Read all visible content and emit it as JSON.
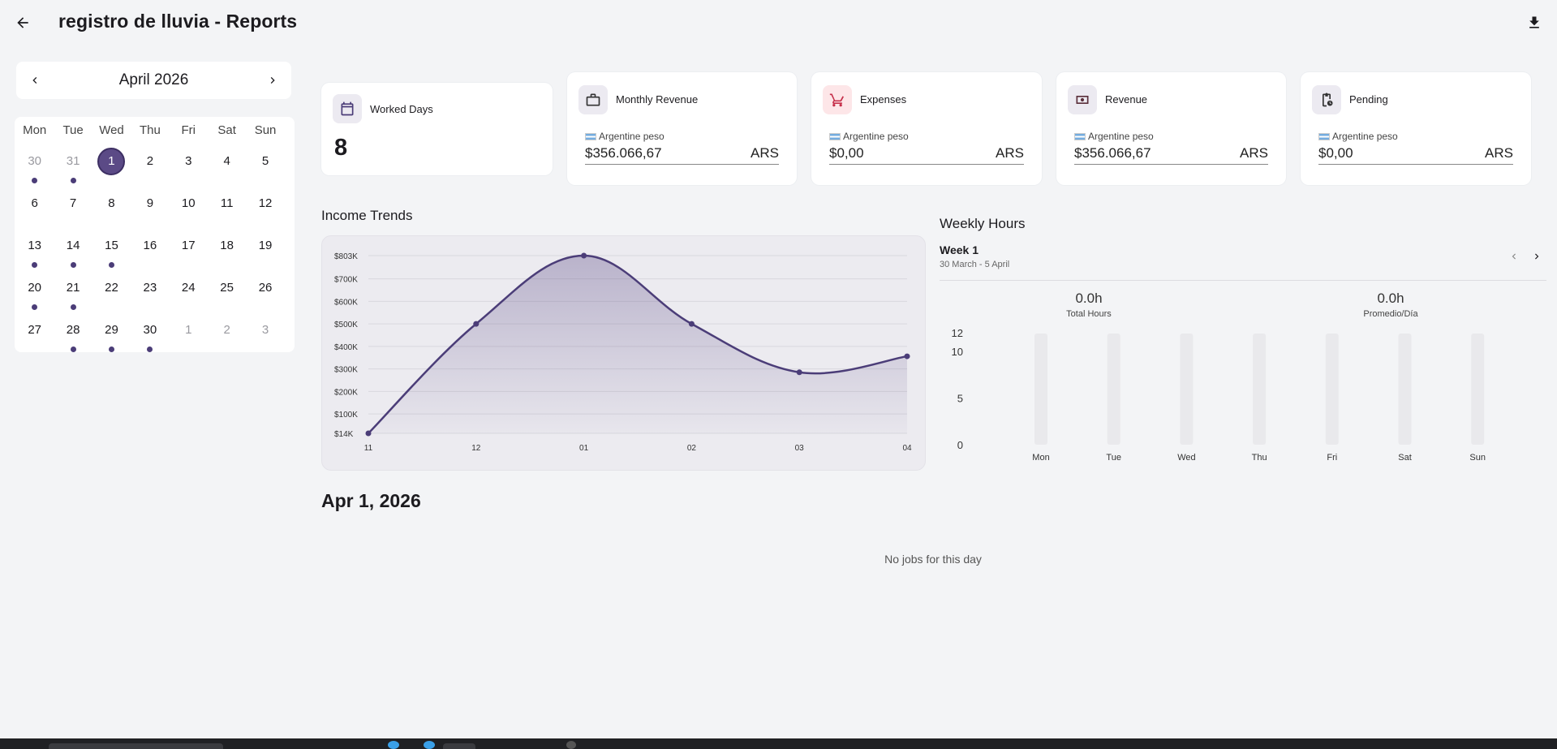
{
  "header": {
    "title": "registro de lluvia - Reports",
    "back_icon": "arrow-left-icon",
    "download_icon": "download-icon"
  },
  "calendar": {
    "month_label": "April 2026",
    "weekdays": [
      "Mon",
      "Tue",
      "Wed",
      "Thu",
      "Fri",
      "Sat",
      "Sun"
    ],
    "days": [
      {
        "n": "30",
        "muted": true,
        "dot": true
      },
      {
        "n": "31",
        "muted": true,
        "dot": true
      },
      {
        "n": "1",
        "selected": true
      },
      {
        "n": "2"
      },
      {
        "n": "3"
      },
      {
        "n": "4"
      },
      {
        "n": "5"
      },
      {
        "n": "6"
      },
      {
        "n": "7"
      },
      {
        "n": "8"
      },
      {
        "n": "9"
      },
      {
        "n": "10"
      },
      {
        "n": "11"
      },
      {
        "n": "12"
      },
      {
        "n": "13",
        "dot": true
      },
      {
        "n": "14",
        "dot": true
      },
      {
        "n": "15",
        "dot": true
      },
      {
        "n": "16"
      },
      {
        "n": "17"
      },
      {
        "n": "18"
      },
      {
        "n": "19"
      },
      {
        "n": "20",
        "dot": true
      },
      {
        "n": "21",
        "dot": true
      },
      {
        "n": "22"
      },
      {
        "n": "23"
      },
      {
        "n": "24"
      },
      {
        "n": "25"
      },
      {
        "n": "26"
      },
      {
        "n": "27"
      },
      {
        "n": "28",
        "dot": true
      },
      {
        "n": "29",
        "dot": true
      },
      {
        "n": "30",
        "dot": true
      },
      {
        "n": "1",
        "muted": true
      },
      {
        "n": "2",
        "muted": true
      },
      {
        "n": "3",
        "muted": true
      }
    ]
  },
  "cards": {
    "worked_days": {
      "title": "Worked Days",
      "value": "8",
      "icon": "calendar-icon"
    },
    "monthly_revenue": {
      "title": "Monthly Revenue",
      "currency": "Argentine peso",
      "amount": "$356.066,67",
      "code": "ARS",
      "icon": "briefcase-icon"
    },
    "expenses": {
      "title": "Expenses",
      "currency": "Argentine peso",
      "amount": "$0,00",
      "code": "ARS",
      "icon": "cart-icon"
    },
    "revenue": {
      "title": "Revenue",
      "currency": "Argentine peso",
      "amount": "$356.066,67",
      "code": "ARS",
      "icon": "cash-icon"
    },
    "pending": {
      "title": "Pending",
      "currency": "Argentine peso",
      "amount": "$0,00",
      "code": "ARS",
      "icon": "clipboard-clock-icon"
    }
  },
  "income_trends": {
    "title": "Income Trends",
    "chart_data": {
      "type": "area",
      "title": "Income Trends",
      "xlabel": "",
      "ylabel": "",
      "categories": [
        "11",
        "12",
        "01",
        "02",
        "03",
        "04"
      ],
      "values": [
        14000,
        500000,
        803000,
        500000,
        285000,
        356000
      ],
      "y_ticks": [
        "$803K",
        "$700K",
        "$600K",
        "$500K",
        "$400K",
        "$300K",
        "$200K",
        "$100K",
        "$14K"
      ],
      "y_tick_values": [
        803000,
        700000,
        600000,
        500000,
        400000,
        300000,
        200000,
        100000,
        14000
      ],
      "ylim": [
        14000,
        803000
      ],
      "grid": true,
      "colors": {
        "line": "#4b3d78",
        "fill": "#5b4a86"
      }
    }
  },
  "weekly_hours": {
    "title": "Weekly Hours",
    "week_label": "Week 1",
    "week_range": "30 March - 5 April",
    "total_hours_value": "0.0h",
    "total_hours_label": "Total Hours",
    "avg_value": "0.0h",
    "avg_label": "Promedio/Día",
    "chart_data": {
      "type": "bar",
      "categories": [
        "Mon",
        "Tue",
        "Wed",
        "Thu",
        "Fri",
        "Sat",
        "Sun"
      ],
      "values": [
        0,
        0,
        0,
        0,
        0,
        0,
        0
      ],
      "y_ticks": [
        "12",
        "10",
        "5",
        "0"
      ],
      "y_tick_values": [
        12,
        10,
        5,
        0
      ],
      "ylim": [
        0,
        12
      ]
    }
  },
  "day_detail": {
    "date": "Apr 1, 2026",
    "empty_message": "No jobs for this day"
  }
}
